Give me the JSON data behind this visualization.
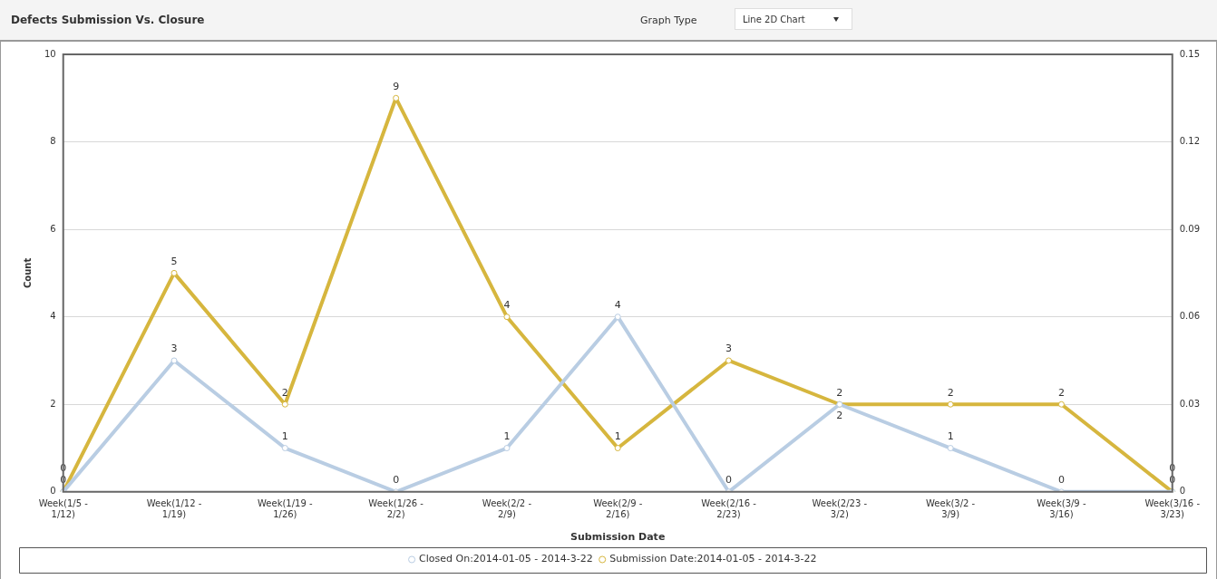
{
  "chart_data": {
    "type": "line",
    "title": "Defects Submission Vs. Closure",
    "xlabel": "Submission Date",
    "ylabel": "Count",
    "annotations": [
      "Graph Type",
      "Line 2D Chart"
    ],
    "categories": [
      "Week(1/5 - 1/12)",
      "Week(1/12 - 1/19)",
      "Week(1/19 - 1/26)",
      "Week(1/26 - 2/2)",
      "Week(2/2 - 2/9)",
      "Week(2/9 - 2/16)",
      "Week(2/16 - 2/23)",
      "Week(2/23 - 3/2)",
      "Week(3/2 - 3/9)",
      "Week(3/9 - 3/16)",
      "Week(3/16 - 3/23)"
    ],
    "series": [
      {
        "name": "Closed On:2014-01-05 - 2014-3-22",
        "color": "#b9cde3",
        "values": [
          0,
          3,
          1,
          0,
          1,
          4,
          0,
          2,
          1,
          0,
          0
        ]
      },
      {
        "name": "Submission Date:2014-01-05 - 2014-3-22",
        "color": "#d6b63e",
        "values": [
          0,
          5,
          2,
          9,
          4,
          1,
          3,
          2,
          2,
          2,
          0
        ]
      }
    ],
    "ylim": [
      0,
      10
    ],
    "yticks": [
      0,
      2,
      4,
      6,
      8,
      10
    ],
    "y2lim": [
      0,
      0.15
    ],
    "y2ticks": [
      0,
      0.03,
      0.06,
      0.09,
      0.12,
      0.15
    ],
    "grid": "y",
    "legend": "bottom",
    "marker": "circle",
    "line_style": "solid",
    "data_labels": true
  }
}
